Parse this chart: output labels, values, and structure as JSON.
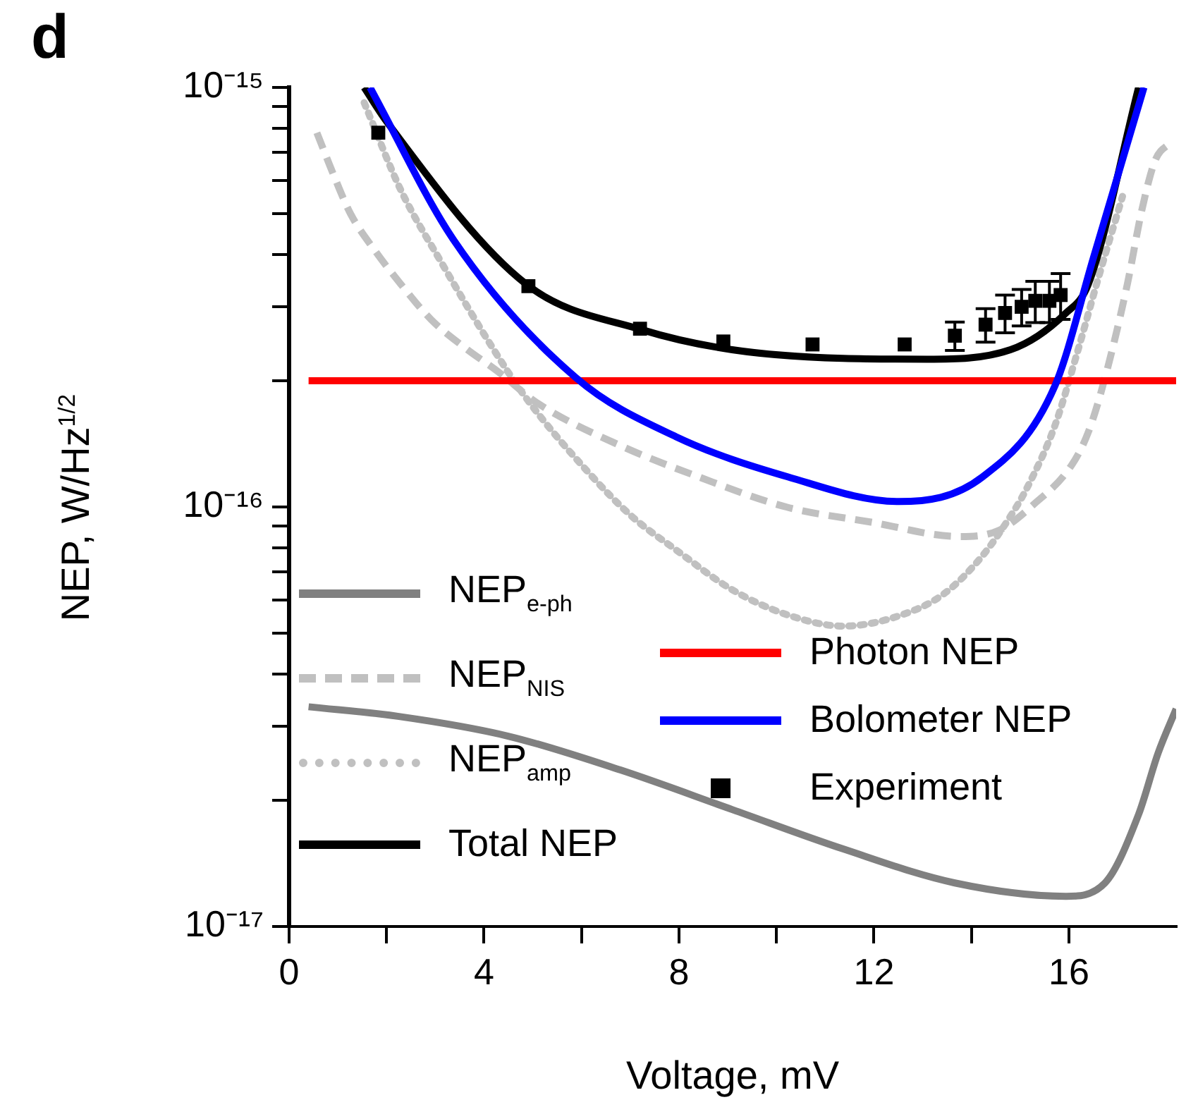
{
  "chart_data": {
    "type": "line",
    "title": "d",
    "xlabel": "Voltage, mV",
    "ylabel": "NEP, W/Hz$^{1/2}$",
    "log": "y",
    "grid": false,
    "legend": "bottom left",
    "xlim": [
      0,
      18.2
    ],
    "xticks": [
      0,
      {
        "value": 2,
        "label": null
      },
      4,
      {
        "value": 6,
        "label": null
      },
      8,
      {
        "value": 10,
        "label": null
      },
      12,
      {
        "value": 14,
        "label": null
      },
      16
    ],
    "ylim": [
      1e-17,
      1e-15
    ],
    "yticks": [
      {
        "value": 1e-17,
        "label": "10⁻¹⁷"
      },
      {
        "value": 2e-17,
        "label": null
      },
      {
        "value": 3e-17,
        "label": null
      },
      {
        "value": 4e-17,
        "label": null
      },
      {
        "value": 5e-17,
        "label": null
      },
      {
        "value": 6e-17,
        "label": null
      },
      {
        "value": 7e-17,
        "label": null
      },
      {
        "value": 8e-17,
        "label": null
      },
      {
        "value": 9e-17,
        "label": null
      },
      {
        "value": 1e-16,
        "label": "10⁻¹⁶"
      },
      {
        "value": 2e-16,
        "label": null
      },
      {
        "value": 3e-16,
        "label": null
      },
      {
        "value": 4e-16,
        "label": null
      },
      {
        "value": 5e-16,
        "label": null
      },
      {
        "value": 6e-16,
        "label": null
      },
      {
        "value": 7e-16,
        "label": null
      },
      {
        "value": 8e-16,
        "label": null
      },
      {
        "value": 9e-16,
        "label": null
      },
      {
        "value": 1e-15,
        "label": "10⁻¹⁵"
      }
    ],
    "series": [
      {
        "name": "NEP$_{e-ph}$",
        "color": "#808080",
        "line_style": "solid",
        "marker": "none",
        "x": [
          0.4,
          2.23,
          4.51,
          6.8,
          9.09,
          11.37,
          13.66,
          15.94,
          16.74,
          17.43,
          17.83,
          18.2
        ],
        "values": [
          3.34e-17,
          3.17e-17,
          2.84e-17,
          2.36e-17,
          1.9e-17,
          1.53e-17,
          1.27e-17,
          1.18e-17,
          1.27e-17,
          1.85e-17,
          2.59e-17,
          3.3e-17
        ]
      },
      {
        "name": "NEP$_{NIS}$",
        "color": "#c0c0c0",
        "line_style": "dashed",
        "marker": "none",
        "x": [
          0.57,
          0.91,
          1.26,
          1.77,
          2.29,
          2.91,
          3.6,
          4.29,
          5.09,
          6.8,
          8.4,
          10.2,
          11.94,
          13.77,
          14.57,
          15.26,
          16.06,
          16.4,
          16.74,
          17.2,
          17.49,
          17.77,
          18.09
        ],
        "values": [
          7.8e-16,
          6.2e-16,
          5e-16,
          4.07e-16,
          3.4e-16,
          2.8e-16,
          2.4e-16,
          2.1e-16,
          1.77e-16,
          1.4e-16,
          1.18e-16,
          1e-16,
          9.2e-17,
          8.5e-17,
          8.8e-17,
          1.01e-16,
          1.26e-16,
          1.51e-16,
          2.03e-16,
          3.4e-16,
          5.06e-16,
          6.7e-16,
          7.4e-16
        ]
      },
      {
        "name": "NEP$_{amp}$",
        "color": "#c0c0c0",
        "line_style": "dotted",
        "marker": "none",
        "x": [
          1.54,
          2.29,
          3.14,
          4.17,
          4.86,
          6.11,
          7.03,
          7.94,
          9.09,
          10.23,
          11.37,
          12.51,
          13.43,
          14.23,
          14.8,
          15.14,
          15.71,
          16.17,
          16.6,
          17.1
        ],
        "values": [
          9.2e-16,
          5.7e-16,
          3.8e-16,
          2.4e-16,
          1.82e-16,
          1.22e-16,
          9.5e-17,
          7.9e-17,
          6.35e-17,
          5.53e-17,
          5.2e-17,
          5.5e-17,
          6.2e-17,
          7.66e-17,
          9.5e-17,
          1.11e-16,
          1.56e-16,
          2.33e-16,
          3.5e-16,
          5.5e-16
        ]
      },
      {
        "name": "Total NEP",
        "color": "#000000",
        "line_style": "solid",
        "marker": "none",
        "x": [
          1.54,
          2.0,
          4.86,
          7.26,
          9.09,
          11.37,
          13.09,
          14.8,
          15.94,
          16.4,
          17.43
        ],
        "values": [
          1e-15,
          8.3e-16,
          3.4e-16,
          2.64e-16,
          2.37e-16,
          2.26e-16,
          2.25e-16,
          2.37e-16,
          2.9e-16,
          3.4e-16,
          1e-15
        ]
      },
      {
        "name": "Photon NEP",
        "color": "#ff0000",
        "line_style": "solid",
        "marker": "none",
        "x": [
          0.4,
          18.2
        ],
        "values": [
          2e-16,
          2e-16
        ]
      },
      {
        "name": "Bolometer NEP",
        "color": "#0000ff",
        "line_style": "solid",
        "marker": "none",
        "x": [
          1.66,
          3.37,
          5.89,
          7.94,
          10.23,
          12.51,
          14.23,
          15.71,
          16.51,
          17.54
        ],
        "values": [
          1e-15,
          4.34e-16,
          2.03e-16,
          1.47e-16,
          1.18e-16,
          1.03e-16,
          1.18e-16,
          1.94e-16,
          3.95e-16,
          1e-15
        ]
      },
      {
        "name": "Experiment",
        "type": "scatter",
        "color": "#000000",
        "marker": "square",
        "x": [
          1.83,
          4.91,
          7.2,
          8.91,
          10.74,
          12.63,
          13.66,
          14.29,
          14.69,
          15.03,
          15.31,
          15.6,
          15.83
        ],
        "values": [
          7.8e-16,
          3.36e-16,
          2.66e-16,
          2.48e-16,
          2.44e-16,
          2.44e-16,
          2.56e-16,
          2.72e-16,
          2.9e-16,
          3e-16,
          3.1e-16,
          3.1e-16,
          3.2e-16
        ],
        "errors": [
          null,
          null,
          null,
          null,
          null,
          null,
          2e-17,
          2.5e-17,
          3e-17,
          3e-17,
          3.5e-17,
          3.5e-17,
          4e-17
        ]
      }
    ]
  }
}
